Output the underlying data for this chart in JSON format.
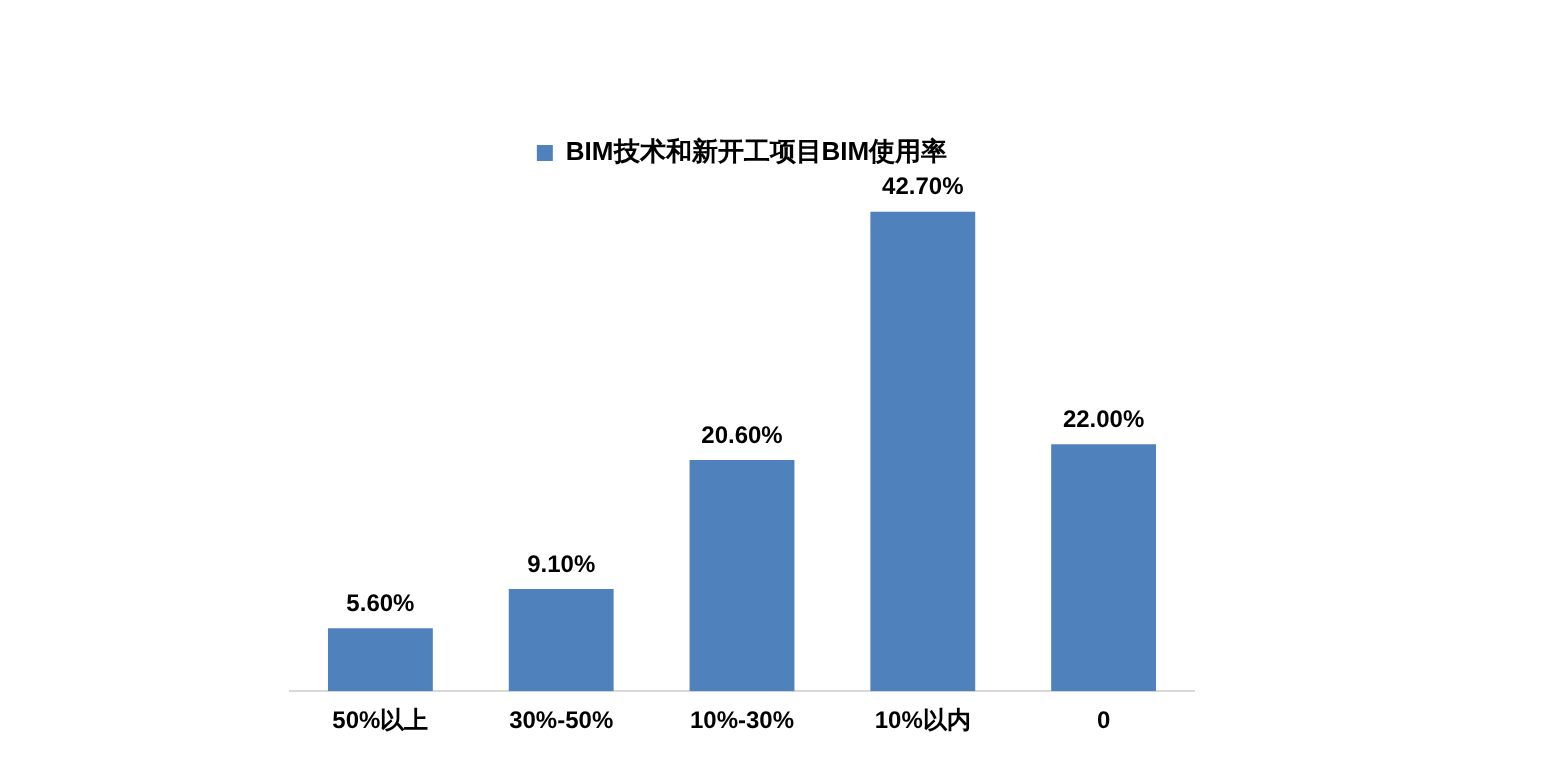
{
  "chart_data": {
    "type": "bar",
    "categories": [
      "50%以上",
      "30%-50%",
      "10%-30%",
      "10%以内",
      "0"
    ],
    "series": [
      {
        "name": "BIM技术和新开工项目BIM使用率",
        "color": "#4f81bd",
        "values": [
          5.6,
          9.1,
          20.6,
          42.7,
          22.0
        ],
        "value_labels": [
          "5.60%",
          "9.10%",
          "20.60%",
          "42.70%",
          "22.00%"
        ]
      }
    ],
    "legend": "top",
    "grid": false,
    "tick_labels": "x"
  }
}
